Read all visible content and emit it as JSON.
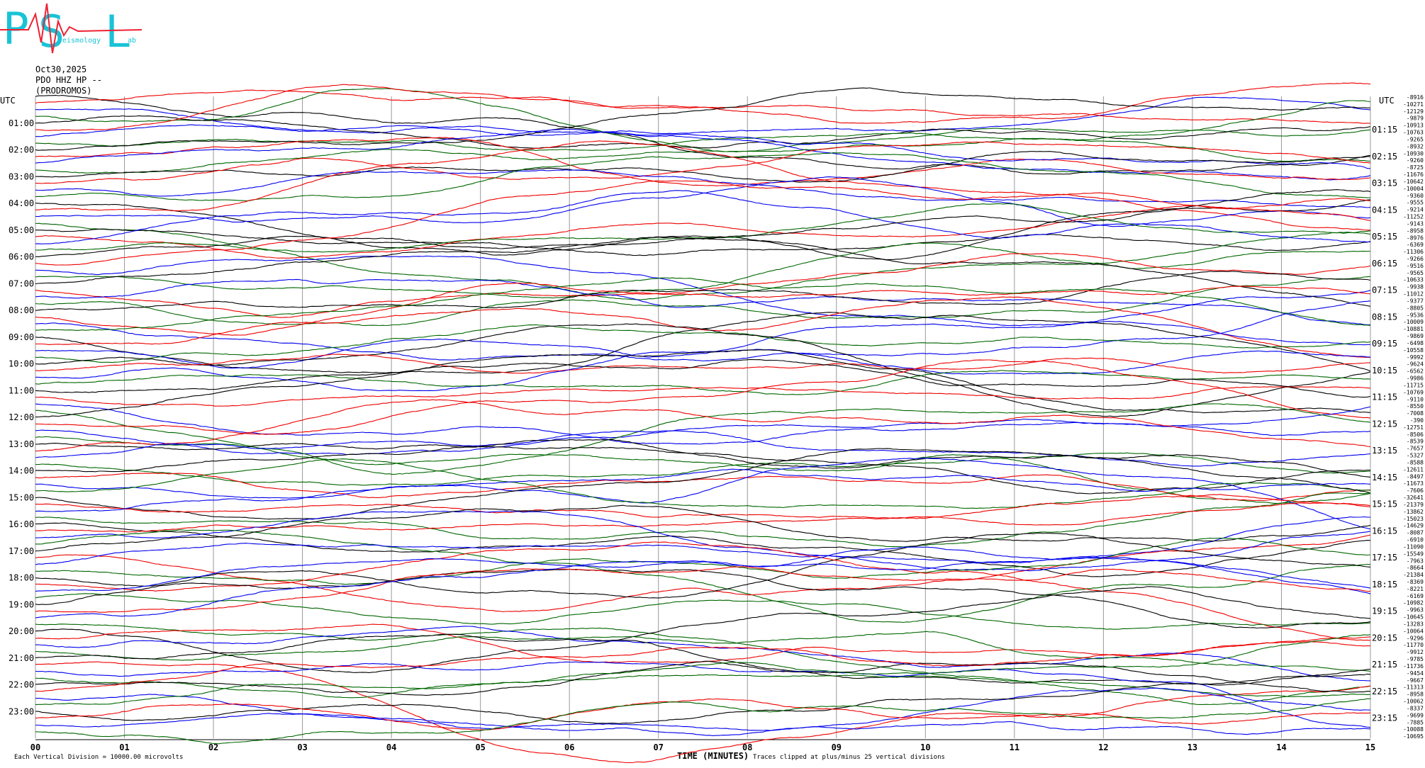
{
  "logo": {
    "letters": [
      "P",
      "S",
      "L"
    ],
    "words": [
      "eismology",
      "ab"
    ]
  },
  "header": {
    "date": "Oct30,2025",
    "station": "PDO HHZ HP --",
    "site": "(PRODROMOS)"
  },
  "utc_left": "UTC",
  "utc_right": "UTC",
  "left_labels": [
    "01:00",
    "02:00",
    "03:00",
    "04:00",
    "05:00",
    "06:00",
    "07:00",
    "08:00",
    "09:00",
    "10:00",
    "11:00",
    "12:00",
    "13:00",
    "14:00",
    "15:00",
    "16:00",
    "17:00",
    "18:00",
    "19:00",
    "20:00",
    "21:00",
    "22:00",
    "23:00"
  ],
  "right_labels": [
    "01:15",
    "02:15",
    "03:15",
    "04:15",
    "05:15",
    "06:15",
    "07:15",
    "08:15",
    "09:15",
    "10:15",
    "11:15",
    "12:15",
    "13:15",
    "14:15",
    "15:15",
    "16:15",
    "17:15",
    "18:15",
    "19:15",
    "20:15",
    "21:15",
    "22:15",
    "23:15"
  ],
  "offsets": [
    "-8916",
    "-10271",
    "-12129",
    "-9879",
    "-10913",
    "-10763",
    "-9265",
    "-8932",
    "-10930",
    "-9260",
    "-8725",
    "-11676",
    "-10642",
    "-10004",
    "-9360",
    "-9555",
    "-9214",
    "-11252",
    "-9143",
    "-8958",
    "-8976",
    "-6369",
    "-11306",
    "-9266",
    "-9516",
    "-9565",
    "-10633",
    "-9938",
    "-11012",
    "-9377",
    "-8805",
    "-9536",
    "-10009",
    "-10881",
    "-9869",
    "-6498",
    "-10558",
    "-9992",
    "-9624",
    "-6562",
    "-9986",
    "-11715",
    "-10769",
    "-9110",
    "-8550",
    "-7008",
    "-390",
    "-12751",
    "-8506",
    "-8539",
    "-7657",
    "-5327",
    "-8588",
    "-12611",
    "-8497",
    "-11673",
    "-7606",
    "-32641",
    "-21379",
    "-13862",
    "-15023",
    "-14629",
    "-8087",
    "-6910",
    "-11090",
    "-15549",
    "-7963",
    "-8664",
    "-21384",
    "-8369",
    "-8221",
    "-6169",
    "-10982",
    "-9963",
    "-10645",
    "-13283",
    "-10064",
    "-9296",
    "-11770",
    "-9912",
    "-9785",
    "-11736",
    "-9454",
    "-9667",
    "-11313",
    "-8958",
    "-10062",
    "-8337",
    "-9699",
    "-7885",
    "-10088",
    "-10695"
  ],
  "x_labels": [
    "00",
    "01",
    "02",
    "03",
    "04",
    "05",
    "06",
    "07",
    "08",
    "09",
    "10",
    "11",
    "12",
    "13",
    "14",
    "15"
  ],
  "x_title": "TIME (MINUTES)",
  "clip_note": "Traces clipped at plus/minus 25 vertical divisions",
  "scale_note": "Each Vertical Division = 10000.00 microvolts"
}
